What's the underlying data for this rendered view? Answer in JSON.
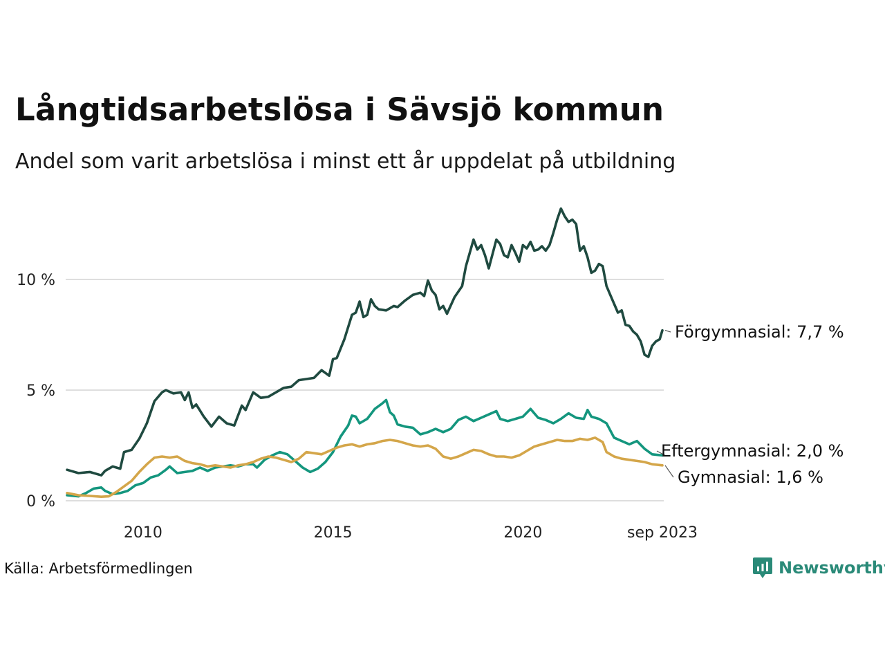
{
  "title": "Långtidsarbetslösa i Sävsjö kommun",
  "subtitle": "Andel som varit arbetslösa i minst ett år uppdelat på utbildning",
  "source": "Källa: Arbetsförmedlingen",
  "logo": {
    "text": "Newsworthy",
    "color": "#2a8a78"
  },
  "chart_data": {
    "type": "line",
    "title": "Långtidsarbetslösa i Sävsjö kommun",
    "xlabel": "",
    "ylabel": "",
    "x_start": "2008-01",
    "x_end": "2023-09",
    "xlim": [
      2008.0,
      2023.67
    ],
    "ylim": [
      0,
      13.5
    ],
    "y_ticks": [
      {
        "value": 0,
        "label": "0 %"
      },
      {
        "value": 5,
        "label": "5 %"
      },
      {
        "value": 10,
        "label": "10 %"
      }
    ],
    "x_ticks": [
      {
        "value": 2010.0,
        "label": "2010"
      },
      {
        "value": 2015.0,
        "label": "2015"
      },
      {
        "value": 2020.0,
        "label": "2020"
      },
      {
        "value": 2023.67,
        "label": "sep 2023"
      }
    ],
    "grid": true,
    "series": [
      {
        "name": "Förgymnasial",
        "end_label": "Förgymnasial: 7,7 %",
        "color": "#1f4a40",
        "points": [
          [
            2008.0,
            1.4
          ],
          [
            2008.3,
            1.25
          ],
          [
            2008.6,
            1.3
          ],
          [
            2008.9,
            1.15
          ],
          [
            2009.0,
            1.35
          ],
          [
            2009.2,
            1.55
          ],
          [
            2009.4,
            1.45
          ],
          [
            2009.5,
            2.2
          ],
          [
            2009.7,
            2.3
          ],
          [
            2009.9,
            2.8
          ],
          [
            2010.1,
            3.5
          ],
          [
            2010.3,
            4.5
          ],
          [
            2010.5,
            4.9
          ],
          [
            2010.6,
            5.0
          ],
          [
            2010.8,
            4.85
          ],
          [
            2011.0,
            4.9
          ],
          [
            2011.1,
            4.55
          ],
          [
            2011.2,
            4.9
          ],
          [
            2011.3,
            4.2
          ],
          [
            2011.4,
            4.35
          ],
          [
            2011.6,
            3.8
          ],
          [
            2011.8,
            3.35
          ],
          [
            2012.0,
            3.8
          ],
          [
            2012.2,
            3.5
          ],
          [
            2012.4,
            3.4
          ],
          [
            2012.6,
            4.3
          ],
          [
            2012.7,
            4.1
          ],
          [
            2012.9,
            4.9
          ],
          [
            2013.1,
            4.65
          ],
          [
            2013.3,
            4.7
          ],
          [
            2013.5,
            4.9
          ],
          [
            2013.7,
            5.1
          ],
          [
            2013.9,
            5.15
          ],
          [
            2014.1,
            5.45
          ],
          [
            2014.3,
            5.5
          ],
          [
            2014.5,
            5.55
          ],
          [
            2014.7,
            5.9
          ],
          [
            2014.9,
            5.65
          ],
          [
            2015.0,
            6.4
          ],
          [
            2015.1,
            6.45
          ],
          [
            2015.3,
            7.3
          ],
          [
            2015.5,
            8.4
          ],
          [
            2015.6,
            8.5
          ],
          [
            2015.7,
            9.0
          ],
          [
            2015.8,
            8.3
          ],
          [
            2015.9,
            8.4
          ],
          [
            2016.0,
            9.1
          ],
          [
            2016.1,
            8.8
          ],
          [
            2016.2,
            8.65
          ],
          [
            2016.4,
            8.6
          ],
          [
            2016.6,
            8.8
          ],
          [
            2016.7,
            8.75
          ],
          [
            2016.9,
            9.05
          ],
          [
            2017.1,
            9.3
          ],
          [
            2017.3,
            9.4
          ],
          [
            2017.4,
            9.25
          ],
          [
            2017.5,
            9.95
          ],
          [
            2017.6,
            9.5
          ],
          [
            2017.7,
            9.3
          ],
          [
            2017.8,
            8.65
          ],
          [
            2017.9,
            8.8
          ],
          [
            2018.0,
            8.45
          ],
          [
            2018.2,
            9.2
          ],
          [
            2018.4,
            9.7
          ],
          [
            2018.5,
            10.6
          ],
          [
            2018.7,
            11.8
          ],
          [
            2018.8,
            11.35
          ],
          [
            2018.9,
            11.55
          ],
          [
            2019.0,
            11.1
          ],
          [
            2019.1,
            10.5
          ],
          [
            2019.3,
            11.8
          ],
          [
            2019.4,
            11.6
          ],
          [
            2019.5,
            11.1
          ],
          [
            2019.6,
            11.0
          ],
          [
            2019.7,
            11.55
          ],
          [
            2019.8,
            11.2
          ],
          [
            2019.9,
            10.8
          ],
          [
            2020.0,
            11.55
          ],
          [
            2020.1,
            11.4
          ],
          [
            2020.2,
            11.7
          ],
          [
            2020.3,
            11.3
          ],
          [
            2020.4,
            11.35
          ],
          [
            2020.5,
            11.5
          ],
          [
            2020.6,
            11.3
          ],
          [
            2020.7,
            11.55
          ],
          [
            2020.8,
            12.1
          ],
          [
            2020.9,
            12.7
          ],
          [
            2021.0,
            13.2
          ],
          [
            2021.1,
            12.85
          ],
          [
            2021.2,
            12.6
          ],
          [
            2021.3,
            12.7
          ],
          [
            2021.4,
            12.5
          ],
          [
            2021.5,
            11.3
          ],
          [
            2021.6,
            11.5
          ],
          [
            2021.7,
            11.0
          ],
          [
            2021.8,
            10.3
          ],
          [
            2021.9,
            10.4
          ],
          [
            2022.0,
            10.7
          ],
          [
            2022.1,
            10.6
          ],
          [
            2022.2,
            9.7
          ],
          [
            2022.3,
            9.3
          ],
          [
            2022.5,
            8.5
          ],
          [
            2022.6,
            8.6
          ],
          [
            2022.7,
            7.95
          ],
          [
            2022.8,
            7.9
          ],
          [
            2022.9,
            7.65
          ],
          [
            2023.0,
            7.5
          ],
          [
            2023.1,
            7.2
          ],
          [
            2023.2,
            6.6
          ],
          [
            2023.3,
            6.5
          ],
          [
            2023.4,
            7.0
          ],
          [
            2023.5,
            7.2
          ],
          [
            2023.6,
            7.3
          ],
          [
            2023.67,
            7.7
          ]
        ]
      },
      {
        "name": "Eftergymnasial",
        "end_label": "Eftergymnasial: 2,0 %",
        "color": "#14967e",
        "points": [
          [
            2008.0,
            0.25
          ],
          [
            2008.3,
            0.2
          ],
          [
            2008.5,
            0.35
          ],
          [
            2008.7,
            0.55
          ],
          [
            2008.9,
            0.6
          ],
          [
            2009.0,
            0.45
          ],
          [
            2009.2,
            0.3
          ],
          [
            2009.4,
            0.35
          ],
          [
            2009.6,
            0.45
          ],
          [
            2009.8,
            0.7
          ],
          [
            2010.0,
            0.8
          ],
          [
            2010.2,
            1.05
          ],
          [
            2010.4,
            1.15
          ],
          [
            2010.6,
            1.4
          ],
          [
            2010.7,
            1.55
          ],
          [
            2010.9,
            1.25
          ],
          [
            2011.1,
            1.3
          ],
          [
            2011.3,
            1.35
          ],
          [
            2011.5,
            1.5
          ],
          [
            2011.7,
            1.35
          ],
          [
            2011.9,
            1.5
          ],
          [
            2012.1,
            1.55
          ],
          [
            2012.3,
            1.6
          ],
          [
            2012.5,
            1.55
          ],
          [
            2012.7,
            1.65
          ],
          [
            2012.9,
            1.65
          ],
          [
            2013.0,
            1.5
          ],
          [
            2013.2,
            1.85
          ],
          [
            2013.4,
            2.05
          ],
          [
            2013.6,
            2.2
          ],
          [
            2013.8,
            2.1
          ],
          [
            2014.0,
            1.8
          ],
          [
            2014.2,
            1.5
          ],
          [
            2014.4,
            1.3
          ],
          [
            2014.6,
            1.45
          ],
          [
            2014.8,
            1.75
          ],
          [
            2015.0,
            2.2
          ],
          [
            2015.2,
            2.9
          ],
          [
            2015.4,
            3.4
          ],
          [
            2015.5,
            3.85
          ],
          [
            2015.6,
            3.8
          ],
          [
            2015.7,
            3.5
          ],
          [
            2015.9,
            3.7
          ],
          [
            2016.1,
            4.15
          ],
          [
            2016.3,
            4.4
          ],
          [
            2016.4,
            4.55
          ],
          [
            2016.5,
            4.0
          ],
          [
            2016.6,
            3.85
          ],
          [
            2016.7,
            3.45
          ],
          [
            2016.9,
            3.35
          ],
          [
            2017.1,
            3.3
          ],
          [
            2017.3,
            3.0
          ],
          [
            2017.5,
            3.1
          ],
          [
            2017.7,
            3.25
          ],
          [
            2017.9,
            3.1
          ],
          [
            2018.1,
            3.25
          ],
          [
            2018.3,
            3.65
          ],
          [
            2018.5,
            3.8
          ],
          [
            2018.7,
            3.6
          ],
          [
            2018.9,
            3.75
          ],
          [
            2019.1,
            3.9
          ],
          [
            2019.3,
            4.05
          ],
          [
            2019.4,
            3.7
          ],
          [
            2019.6,
            3.6
          ],
          [
            2019.8,
            3.7
          ],
          [
            2020.0,
            3.8
          ],
          [
            2020.2,
            4.15
          ],
          [
            2020.4,
            3.75
          ],
          [
            2020.6,
            3.65
          ],
          [
            2020.8,
            3.5
          ],
          [
            2021.0,
            3.7
          ],
          [
            2021.2,
            3.95
          ],
          [
            2021.4,
            3.75
          ],
          [
            2021.6,
            3.7
          ],
          [
            2021.7,
            4.1
          ],
          [
            2021.8,
            3.8
          ],
          [
            2022.0,
            3.7
          ],
          [
            2022.2,
            3.5
          ],
          [
            2022.4,
            2.85
          ],
          [
            2022.6,
            2.7
          ],
          [
            2022.8,
            2.55
          ],
          [
            2023.0,
            2.7
          ],
          [
            2023.2,
            2.35
          ],
          [
            2023.4,
            2.1
          ],
          [
            2023.67,
            2.05
          ]
        ]
      },
      {
        "name": "Gymnasial",
        "end_label": "Gymnasial: 1,6 %",
        "color": "#d4a64a",
        "points": [
          [
            2008.0,
            0.35
          ],
          [
            2008.3,
            0.25
          ],
          [
            2008.6,
            0.22
          ],
          [
            2008.9,
            0.18
          ],
          [
            2009.1,
            0.2
          ],
          [
            2009.3,
            0.4
          ],
          [
            2009.5,
            0.65
          ],
          [
            2009.7,
            0.9
          ],
          [
            2009.9,
            1.3
          ],
          [
            2010.1,
            1.65
          ],
          [
            2010.3,
            1.95
          ],
          [
            2010.5,
            2.0
          ],
          [
            2010.7,
            1.95
          ],
          [
            2010.9,
            2.0
          ],
          [
            2011.1,
            1.8
          ],
          [
            2011.3,
            1.7
          ],
          [
            2011.5,
            1.65
          ],
          [
            2011.7,
            1.55
          ],
          [
            2011.9,
            1.6
          ],
          [
            2012.1,
            1.55
          ],
          [
            2012.3,
            1.5
          ],
          [
            2012.5,
            1.6
          ],
          [
            2012.7,
            1.65
          ],
          [
            2012.9,
            1.75
          ],
          [
            2013.1,
            1.9
          ],
          [
            2013.3,
            2.0
          ],
          [
            2013.5,
            1.95
          ],
          [
            2013.7,
            1.85
          ],
          [
            2013.9,
            1.75
          ],
          [
            2014.1,
            1.9
          ],
          [
            2014.3,
            2.2
          ],
          [
            2014.5,
            2.15
          ],
          [
            2014.7,
            2.1
          ],
          [
            2014.9,
            2.25
          ],
          [
            2015.1,
            2.4
          ],
          [
            2015.3,
            2.5
          ],
          [
            2015.5,
            2.55
          ],
          [
            2015.7,
            2.45
          ],
          [
            2015.9,
            2.55
          ],
          [
            2016.1,
            2.6
          ],
          [
            2016.3,
            2.7
          ],
          [
            2016.5,
            2.75
          ],
          [
            2016.7,
            2.7
          ],
          [
            2016.9,
            2.6
          ],
          [
            2017.1,
            2.5
          ],
          [
            2017.3,
            2.45
          ],
          [
            2017.5,
            2.5
          ],
          [
            2017.7,
            2.35
          ],
          [
            2017.9,
            2.0
          ],
          [
            2018.1,
            1.9
          ],
          [
            2018.3,
            2.0
          ],
          [
            2018.5,
            2.15
          ],
          [
            2018.7,
            2.3
          ],
          [
            2018.9,
            2.25
          ],
          [
            2019.1,
            2.1
          ],
          [
            2019.3,
            2.0
          ],
          [
            2019.5,
            2.0
          ],
          [
            2019.7,
            1.95
          ],
          [
            2019.9,
            2.05
          ],
          [
            2020.1,
            2.25
          ],
          [
            2020.3,
            2.45
          ],
          [
            2020.5,
            2.55
          ],
          [
            2020.7,
            2.65
          ],
          [
            2020.9,
            2.75
          ],
          [
            2021.1,
            2.7
          ],
          [
            2021.3,
            2.7
          ],
          [
            2021.5,
            2.8
          ],
          [
            2021.7,
            2.75
          ],
          [
            2021.9,
            2.85
          ],
          [
            2022.1,
            2.65
          ],
          [
            2022.2,
            2.2
          ],
          [
            2022.4,
            2.0
          ],
          [
            2022.6,
            1.9
          ],
          [
            2022.8,
            1.85
          ],
          [
            2023.0,
            1.8
          ],
          [
            2023.2,
            1.75
          ],
          [
            2023.4,
            1.65
          ],
          [
            2023.67,
            1.6
          ]
        ]
      }
    ]
  }
}
